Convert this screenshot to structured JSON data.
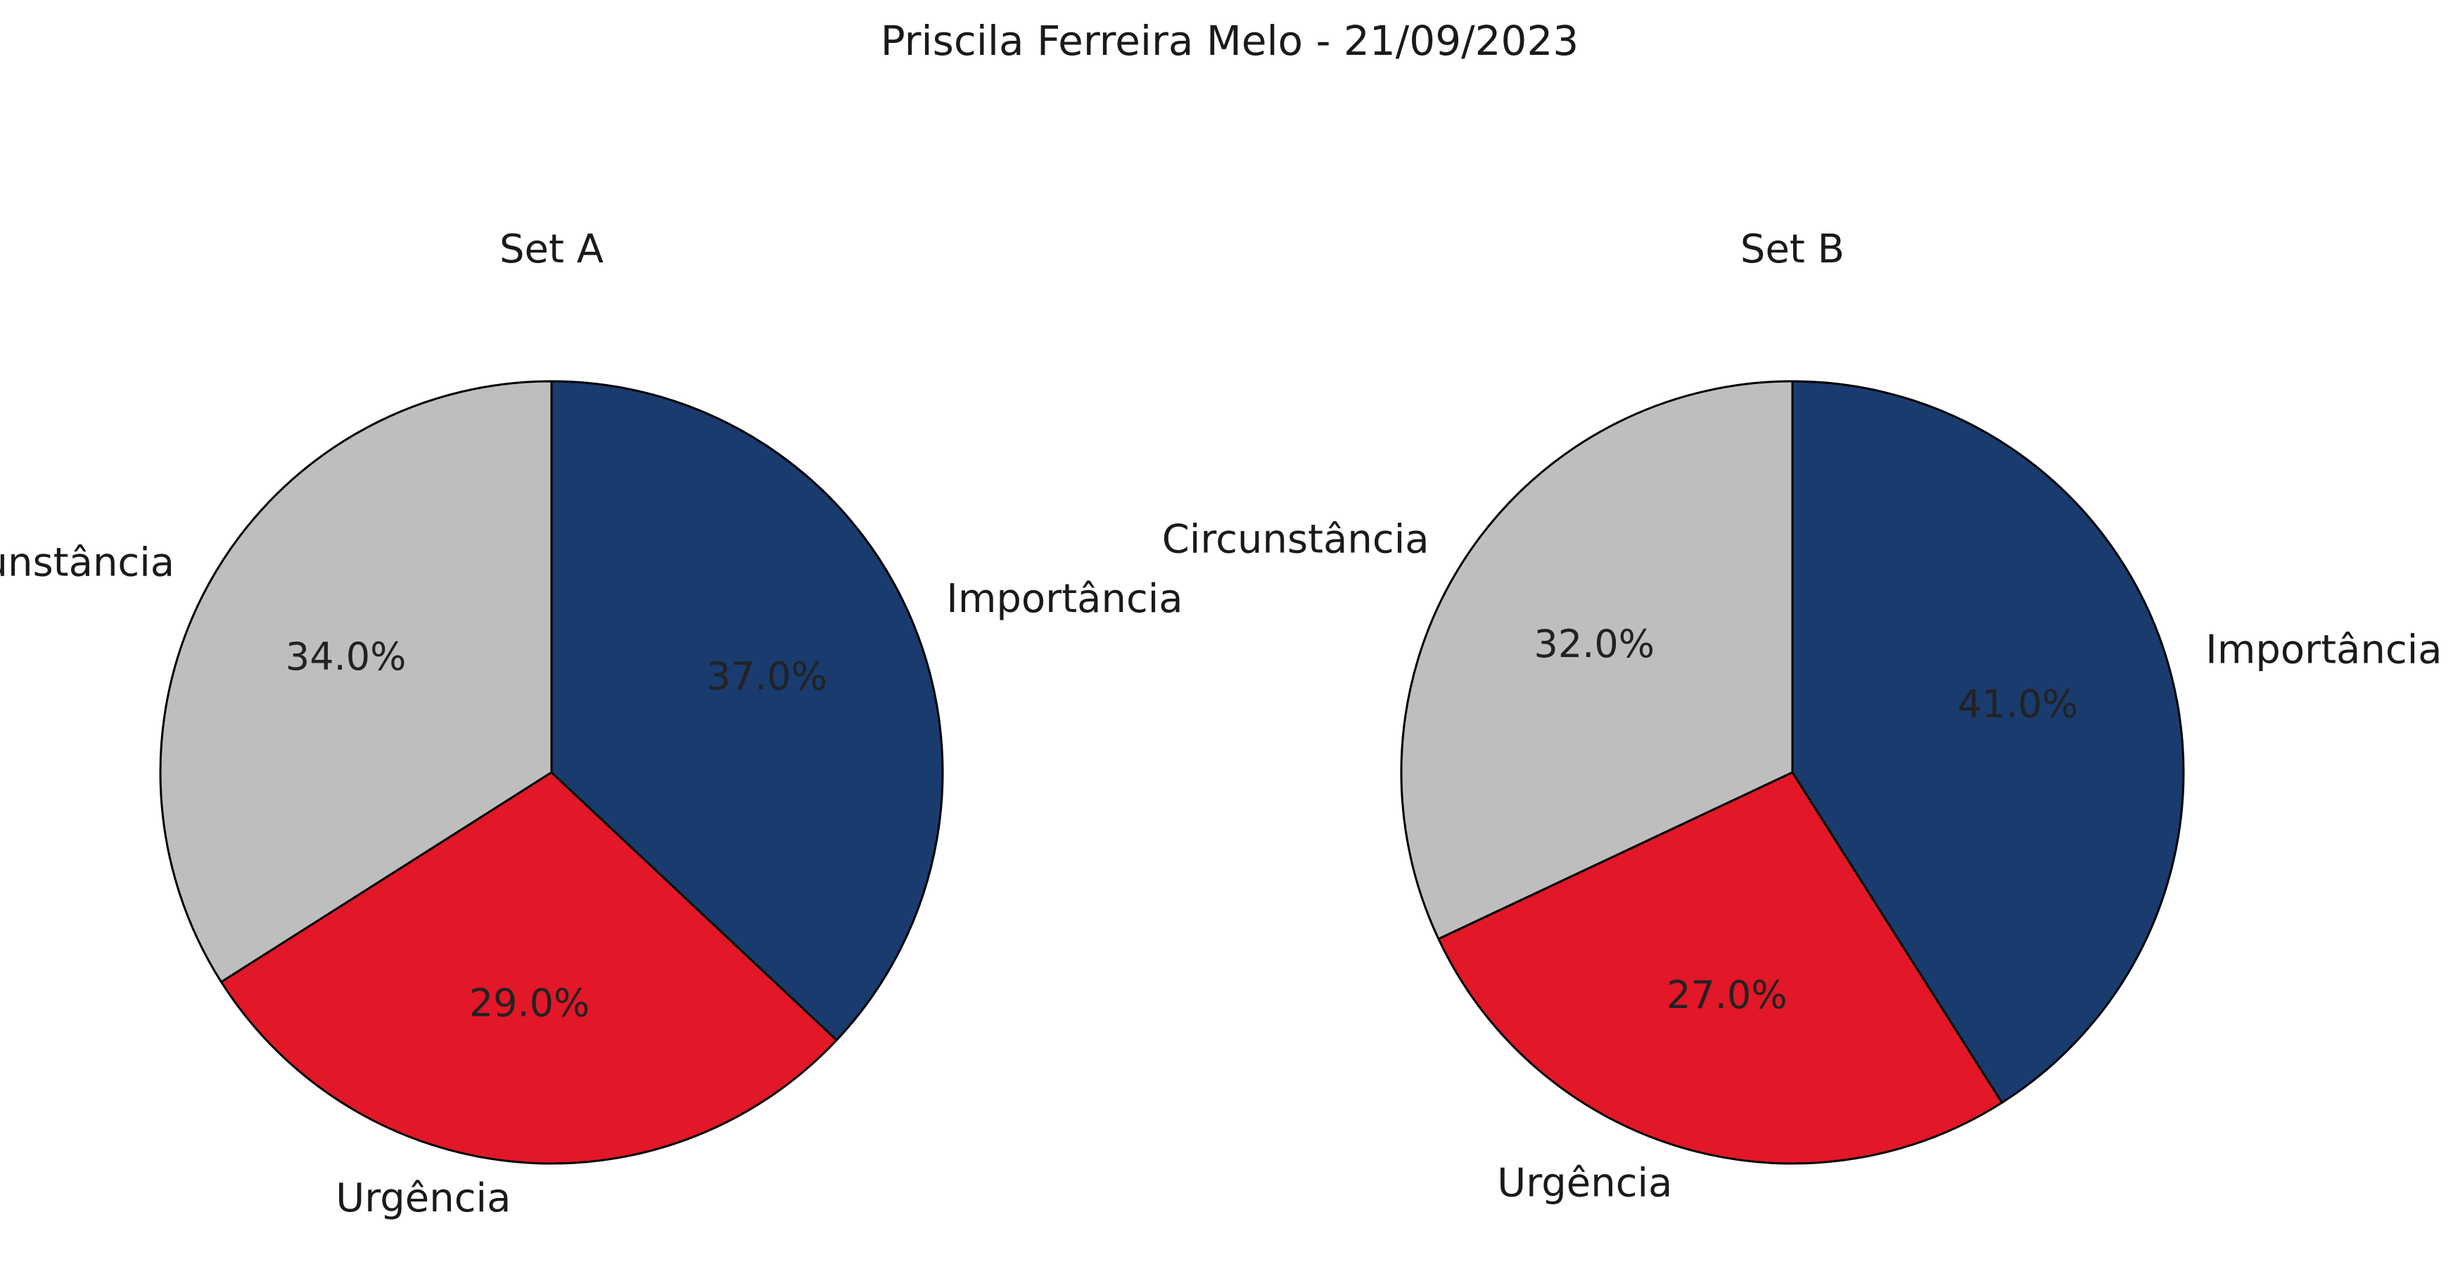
{
  "figure_title": "Priscila Ferreira Melo - 21/09/2023",
  "chart_data": [
    {
      "type": "pie",
      "title": "Set A",
      "labels": [
        "Circunstância",
        "Urgência",
        "Importância"
      ],
      "values": [
        34.0,
        29.0,
        37.0
      ],
      "percent_labels": [
        "34.0%",
        "29.0%",
        "37.0%"
      ],
      "colors": [
        "#BDBEBD",
        "#E21727",
        "#193B6E"
      ],
      "start_angle_deg": 90,
      "direction": "counterclockwise",
      "edge_color": "#000000"
    },
    {
      "type": "pie",
      "title": "Set B",
      "labels": [
        "Circunstância",
        "Urgência",
        "Importância"
      ],
      "values": [
        32.0,
        27.0,
        41.0
      ],
      "percent_labels": [
        "32.0%",
        "27.0%",
        "41.0%"
      ],
      "colors": [
        "#BDBEBD",
        "#E21727",
        "#193B6E"
      ],
      "start_angle_deg": 90,
      "direction": "counterclockwise",
      "edge_color": "#000000"
    }
  ]
}
